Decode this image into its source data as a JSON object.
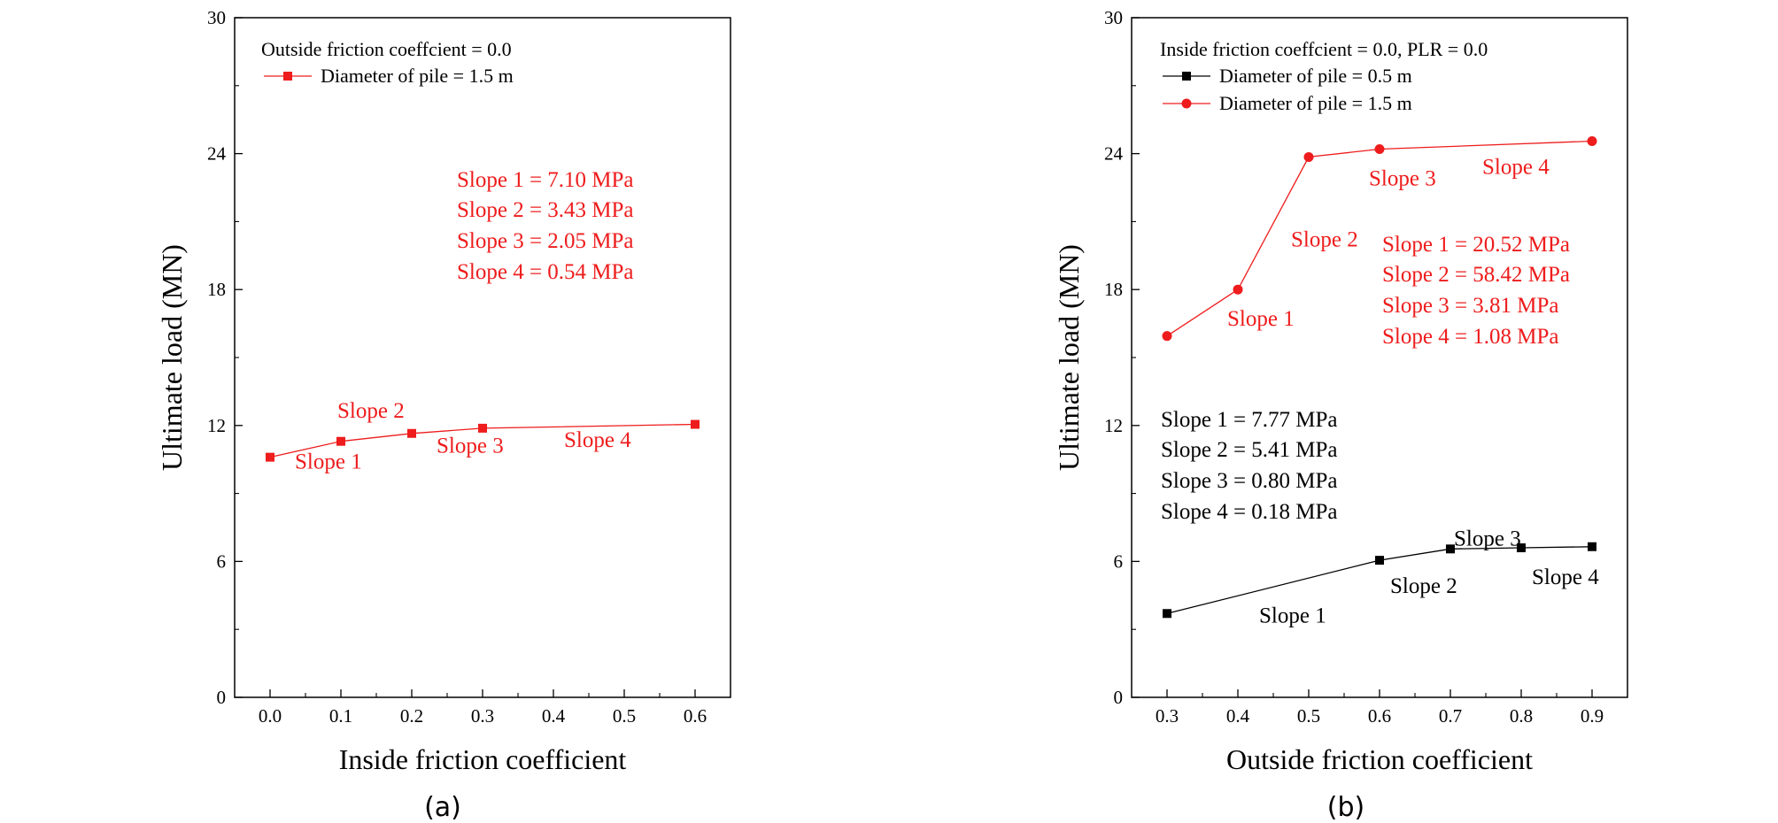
{
  "chart_data": [
    {
      "type": "line",
      "panel_label": "(a)",
      "xlabel": "Inside friction coefficient",
      "ylabel": "Ultimate load (MN)",
      "xlim": [
        -0.05,
        0.65
      ],
      "ylim": [
        0,
        30
      ],
      "xticks": [
        "0.0",
        "0.1",
        "0.2",
        "0.3",
        "0.4",
        "0.5",
        "0.6"
      ],
      "yticks": [
        "0",
        "6",
        "12",
        "18",
        "24",
        "30"
      ],
      "grid": false,
      "legend_placement": "top-left",
      "legend_title": "Outside friction coeffcient = 0.0",
      "series": [
        {
          "name": "Diameter of pile = 1.5 m",
          "color": "#ee1c1c",
          "marker": "square",
          "x": [
            0.0,
            0.1,
            0.2,
            0.3,
            0.6
          ],
          "y": [
            10.6,
            11.3,
            11.65,
            11.88,
            12.05
          ]
        }
      ],
      "annotations": [
        {
          "text": "Slope 1",
          "color": "#ee1c1c",
          "x": 0.035,
          "y": 10.1
        },
        {
          "text": "Slope 2",
          "color": "#ee1c1c",
          "x": 0.095,
          "y": 12.35
        },
        {
          "text": "Slope 3",
          "color": "#ee1c1c",
          "x": 0.235,
          "y": 10.8
        },
        {
          "text": "Slope 4",
          "color": "#ee1c1c",
          "x": 0.415,
          "y": 11.05
        }
      ],
      "slope_text": {
        "color": "#ee1c1c",
        "lines": [
          "Slope 1 = 7.10 MPa",
          "Slope 2 = 3.43 MPa",
          "Slope 3 = 2.05 MPa",
          "Slope 4 = 0.54 MPa"
        ]
      }
    },
    {
      "type": "line",
      "panel_label": "(b)",
      "xlabel": "Outside friction coefficient",
      "ylabel": "Ultimate load (MN)",
      "xlim": [
        0.25,
        0.95
      ],
      "ylim": [
        0,
        30
      ],
      "xticks": [
        "0.3",
        "0.4",
        "0.5",
        "0.6",
        "0.7",
        "0.8",
        "0.9"
      ],
      "yticks": [
        "0",
        "6",
        "12",
        "18",
        "24",
        "30"
      ],
      "grid": false,
      "legend_placement": "top-left",
      "legend_title": "Inside friction coeffcient = 0.0, PLR = 0.0",
      "series": [
        {
          "name": "Diameter of pile = 0.5 m",
          "color": "#000000",
          "marker": "square",
          "x": [
            0.3,
            0.6,
            0.7,
            0.8,
            0.9
          ],
          "y": [
            3.7,
            6.05,
            6.55,
            6.6,
            6.65
          ]
        },
        {
          "name": "Diameter of pile = 1.5 m",
          "color": "#ee1c1c",
          "marker": "circle",
          "x": [
            0.3,
            0.4,
            0.5,
            0.6,
            0.9
          ],
          "y": [
            15.95,
            18.0,
            23.85,
            24.2,
            24.55
          ]
        }
      ],
      "annotations": [
        {
          "text": "Slope 1",
          "color": "#ee1c1c",
          "x": 0.385,
          "y": 16.4
        },
        {
          "text": "Slope 2",
          "color": "#ee1c1c",
          "x": 0.475,
          "y": 19.9
        },
        {
          "text": "Slope 3",
          "color": "#ee1c1c",
          "x": 0.585,
          "y": 22.6
        },
        {
          "text": "Slope 4",
          "color": "#ee1c1c",
          "x": 0.745,
          "y": 23.1
        },
        {
          "text": "Slope 1",
          "color": "#000000",
          "x": 0.43,
          "y": 3.3
        },
        {
          "text": "Slope 2",
          "color": "#000000",
          "x": 0.615,
          "y": 4.6
        },
        {
          "text": "Slope 3",
          "color": "#000000",
          "x": 0.705,
          "y": 6.7
        },
        {
          "text": "Slope 4",
          "color": "#000000",
          "x": 0.815,
          "y": 5.0
        }
      ],
      "slope_text": [
        {
          "color": "#ee1c1c",
          "lines": [
            "Slope 1 = 20.52 MPa",
            "Slope 2 = 58.42 MPa",
            "Slope 3 =  3.81 MPa",
            "Slope 4 =  1.08 MPa"
          ]
        },
        {
          "color": "#000000",
          "lines": [
            "Slope 1 =  7.77 MPa",
            "Slope 2 =  5.41 MPa",
            "Slope 3 =  0.80 MPa",
            "Slope 4 =  0.18 MPa"
          ]
        }
      ]
    }
  ]
}
